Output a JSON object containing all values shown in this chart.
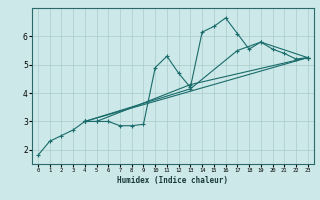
{
  "xlabel": "Humidex (Indice chaleur)",
  "ylabel": "",
  "bg_color": "#cce8e8",
  "grid_color": "#aacccc",
  "line_color": "#1a6b6b",
  "xlim": [
    -0.5,
    23.5
  ],
  "ylim": [
    1.5,
    7.0
  ],
  "xticks": [
    0,
    1,
    2,
    3,
    4,
    5,
    6,
    7,
    8,
    9,
    10,
    11,
    12,
    13,
    14,
    15,
    16,
    17,
    18,
    19,
    20,
    21,
    22,
    23
  ],
  "yticks": [
    2,
    3,
    4,
    5,
    6
  ],
  "series": [
    [
      [
        0,
        1.8
      ],
      [
        1,
        2.3
      ],
      [
        2,
        2.5
      ],
      [
        3,
        2.7
      ],
      [
        4,
        3.0
      ],
      [
        5,
        3.0
      ],
      [
        6,
        3.0
      ],
      [
        7,
        2.85
      ],
      [
        8,
        2.85
      ],
      [
        9,
        2.9
      ],
      [
        10,
        4.9
      ],
      [
        11,
        5.3
      ],
      [
        12,
        4.7
      ],
      [
        13,
        4.2
      ],
      [
        14,
        6.15
      ],
      [
        15,
        6.35
      ],
      [
        16,
        6.65
      ],
      [
        17,
        6.1
      ],
      [
        18,
        5.55
      ],
      [
        19,
        5.8
      ],
      [
        20,
        5.55
      ],
      [
        21,
        5.4
      ],
      [
        22,
        5.2
      ],
      [
        23,
        5.25
      ]
    ],
    [
      [
        4,
        3.0
      ],
      [
        5,
        3.0
      ],
      [
        13,
        4.3
      ],
      [
        23,
        5.25
      ]
    ],
    [
      [
        4,
        3.0
      ],
      [
        13,
        4.15
      ],
      [
        17,
        5.5
      ],
      [
        19,
        5.8
      ],
      [
        23,
        5.25
      ]
    ],
    [
      [
        4,
        3.0
      ],
      [
        23,
        5.25
      ]
    ]
  ]
}
